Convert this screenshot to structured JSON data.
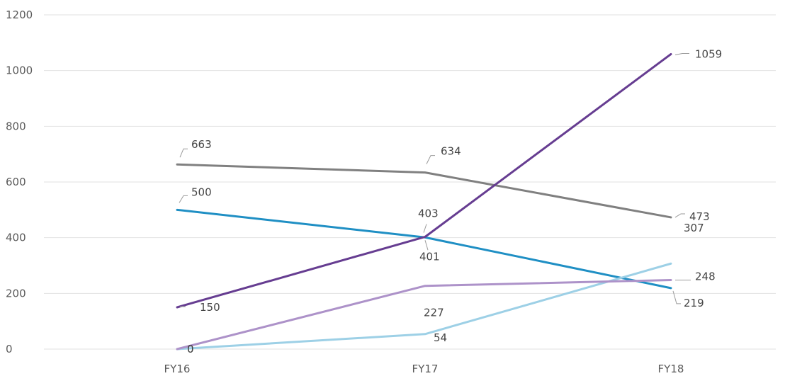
{
  "chart_data": {
    "type": "line",
    "categories": [
      "FY16",
      "FY17",
      "FY18"
    ],
    "ylim": [
      0,
      1200
    ],
    "yticks": [
      0,
      200,
      400,
      600,
      800,
      1000,
      1200
    ],
    "grid": true,
    "title": "",
    "xlabel": "",
    "ylabel": "",
    "series": [
      {
        "color": "#808080",
        "values": [
          663,
          634,
          473
        ],
        "labels": [
          "663",
          "634",
          "473"
        ]
      },
      {
        "color": "#1f8fc4",
        "values": [
          500,
          401,
          219
        ],
        "labels": [
          "500",
          "401",
          "219"
        ]
      },
      {
        "color": "#663d91",
        "values": [
          150,
          403,
          1059
        ],
        "labels": [
          "150",
          "403",
          "1059"
        ]
      },
      {
        "color": "#ad92c9",
        "values": [
          0,
          227,
          248
        ],
        "labels": [
          "0",
          "227",
          "248"
        ]
      },
      {
        "color": "#9dd0e6",
        "values": [
          0,
          54,
          307
        ],
        "labels": [
          "0",
          "54",
          "307"
        ]
      }
    ]
  }
}
